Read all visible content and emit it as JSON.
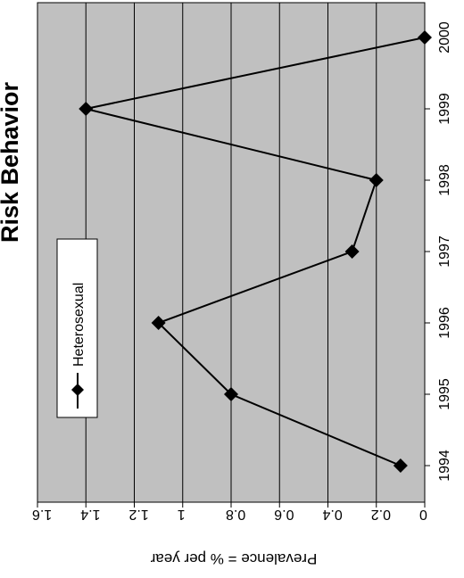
{
  "chart_data": {
    "type": "line",
    "title": "Risk Behavior",
    "xlabel": "",
    "ylabel": "Prevalence = % per year",
    "x": [
      "1994",
      "1995",
      "1996",
      "1997",
      "1998",
      "1999",
      "2000"
    ],
    "series": [
      {
        "name": "Heterosexual",
        "values": [
          0.1,
          0.8,
          1.1,
          0.3,
          0.2,
          1.4,
          0.0
        ]
      }
    ],
    "ylim": [
      0,
      1.6
    ],
    "y_ticks": [
      "1.6",
      "1.4",
      "1.2",
      "1",
      "0.8",
      "0.6",
      "0.4",
      "0.2",
      "0"
    ],
    "grid": true,
    "orientation": "rotated 90 degrees clockwise",
    "plot_background": "#c0c0c0",
    "line_color": "#000000",
    "marker": "diamond"
  }
}
